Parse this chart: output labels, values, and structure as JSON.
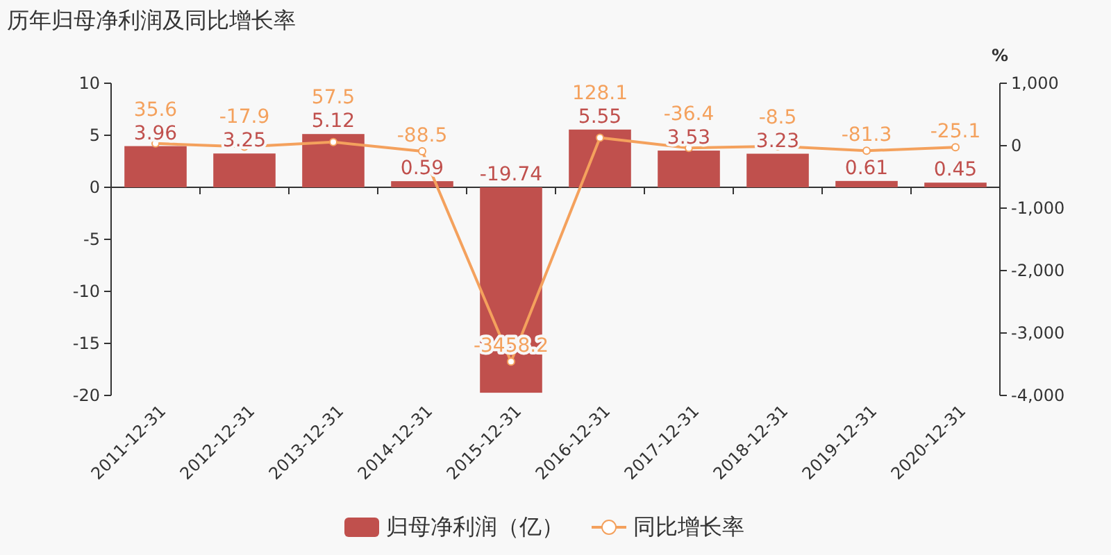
{
  "chart_data": {
    "type": "bar",
    "title": "历年归母净利润及同比增长率",
    "categories": [
      "2011-12-31",
      "2012-12-31",
      "2013-12-31",
      "2014-12-31",
      "2015-12-31",
      "2016-12-31",
      "2017-12-31",
      "2018-12-31",
      "2019-12-31",
      "2020-12-31"
    ],
    "series": [
      {
        "name": "归母净利润（亿）",
        "color": "#c0504d",
        "values": [
          3.96,
          3.25,
          5.12,
          0.59,
          -19.74,
          5.55,
          3.53,
          3.23,
          0.61,
          0.45
        ]
      },
      {
        "name": "同比增长率",
        "type": "line",
        "axis": "y2",
        "marker": "circle",
        "color": "#f4a15d",
        "values": [
          35.6,
          -17.9,
          57.5,
          -88.5,
          -3458.2,
          128.1,
          -36.4,
          -8.5,
          -81.3,
          -25.1
        ]
      }
    ],
    "ylim": [
      -20,
      10
    ],
    "yticks": [
      -20,
      -15,
      -10,
      -5,
      0,
      5,
      10
    ],
    "y2lim": [
      -4000,
      1000
    ],
    "y2ticks": [
      {
        "value": -4000,
        "label": "-4,000"
      },
      {
        "value": -3000,
        "label": "-3,000"
      },
      {
        "value": -2000,
        "label": "-2,000"
      },
      {
        "value": -1000,
        "label": "-1,000"
      },
      0,
      {
        "value": 1000,
        "label": "1,000"
      }
    ],
    "y2label": "%",
    "data_labels": true,
    "legend": "bottom"
  }
}
